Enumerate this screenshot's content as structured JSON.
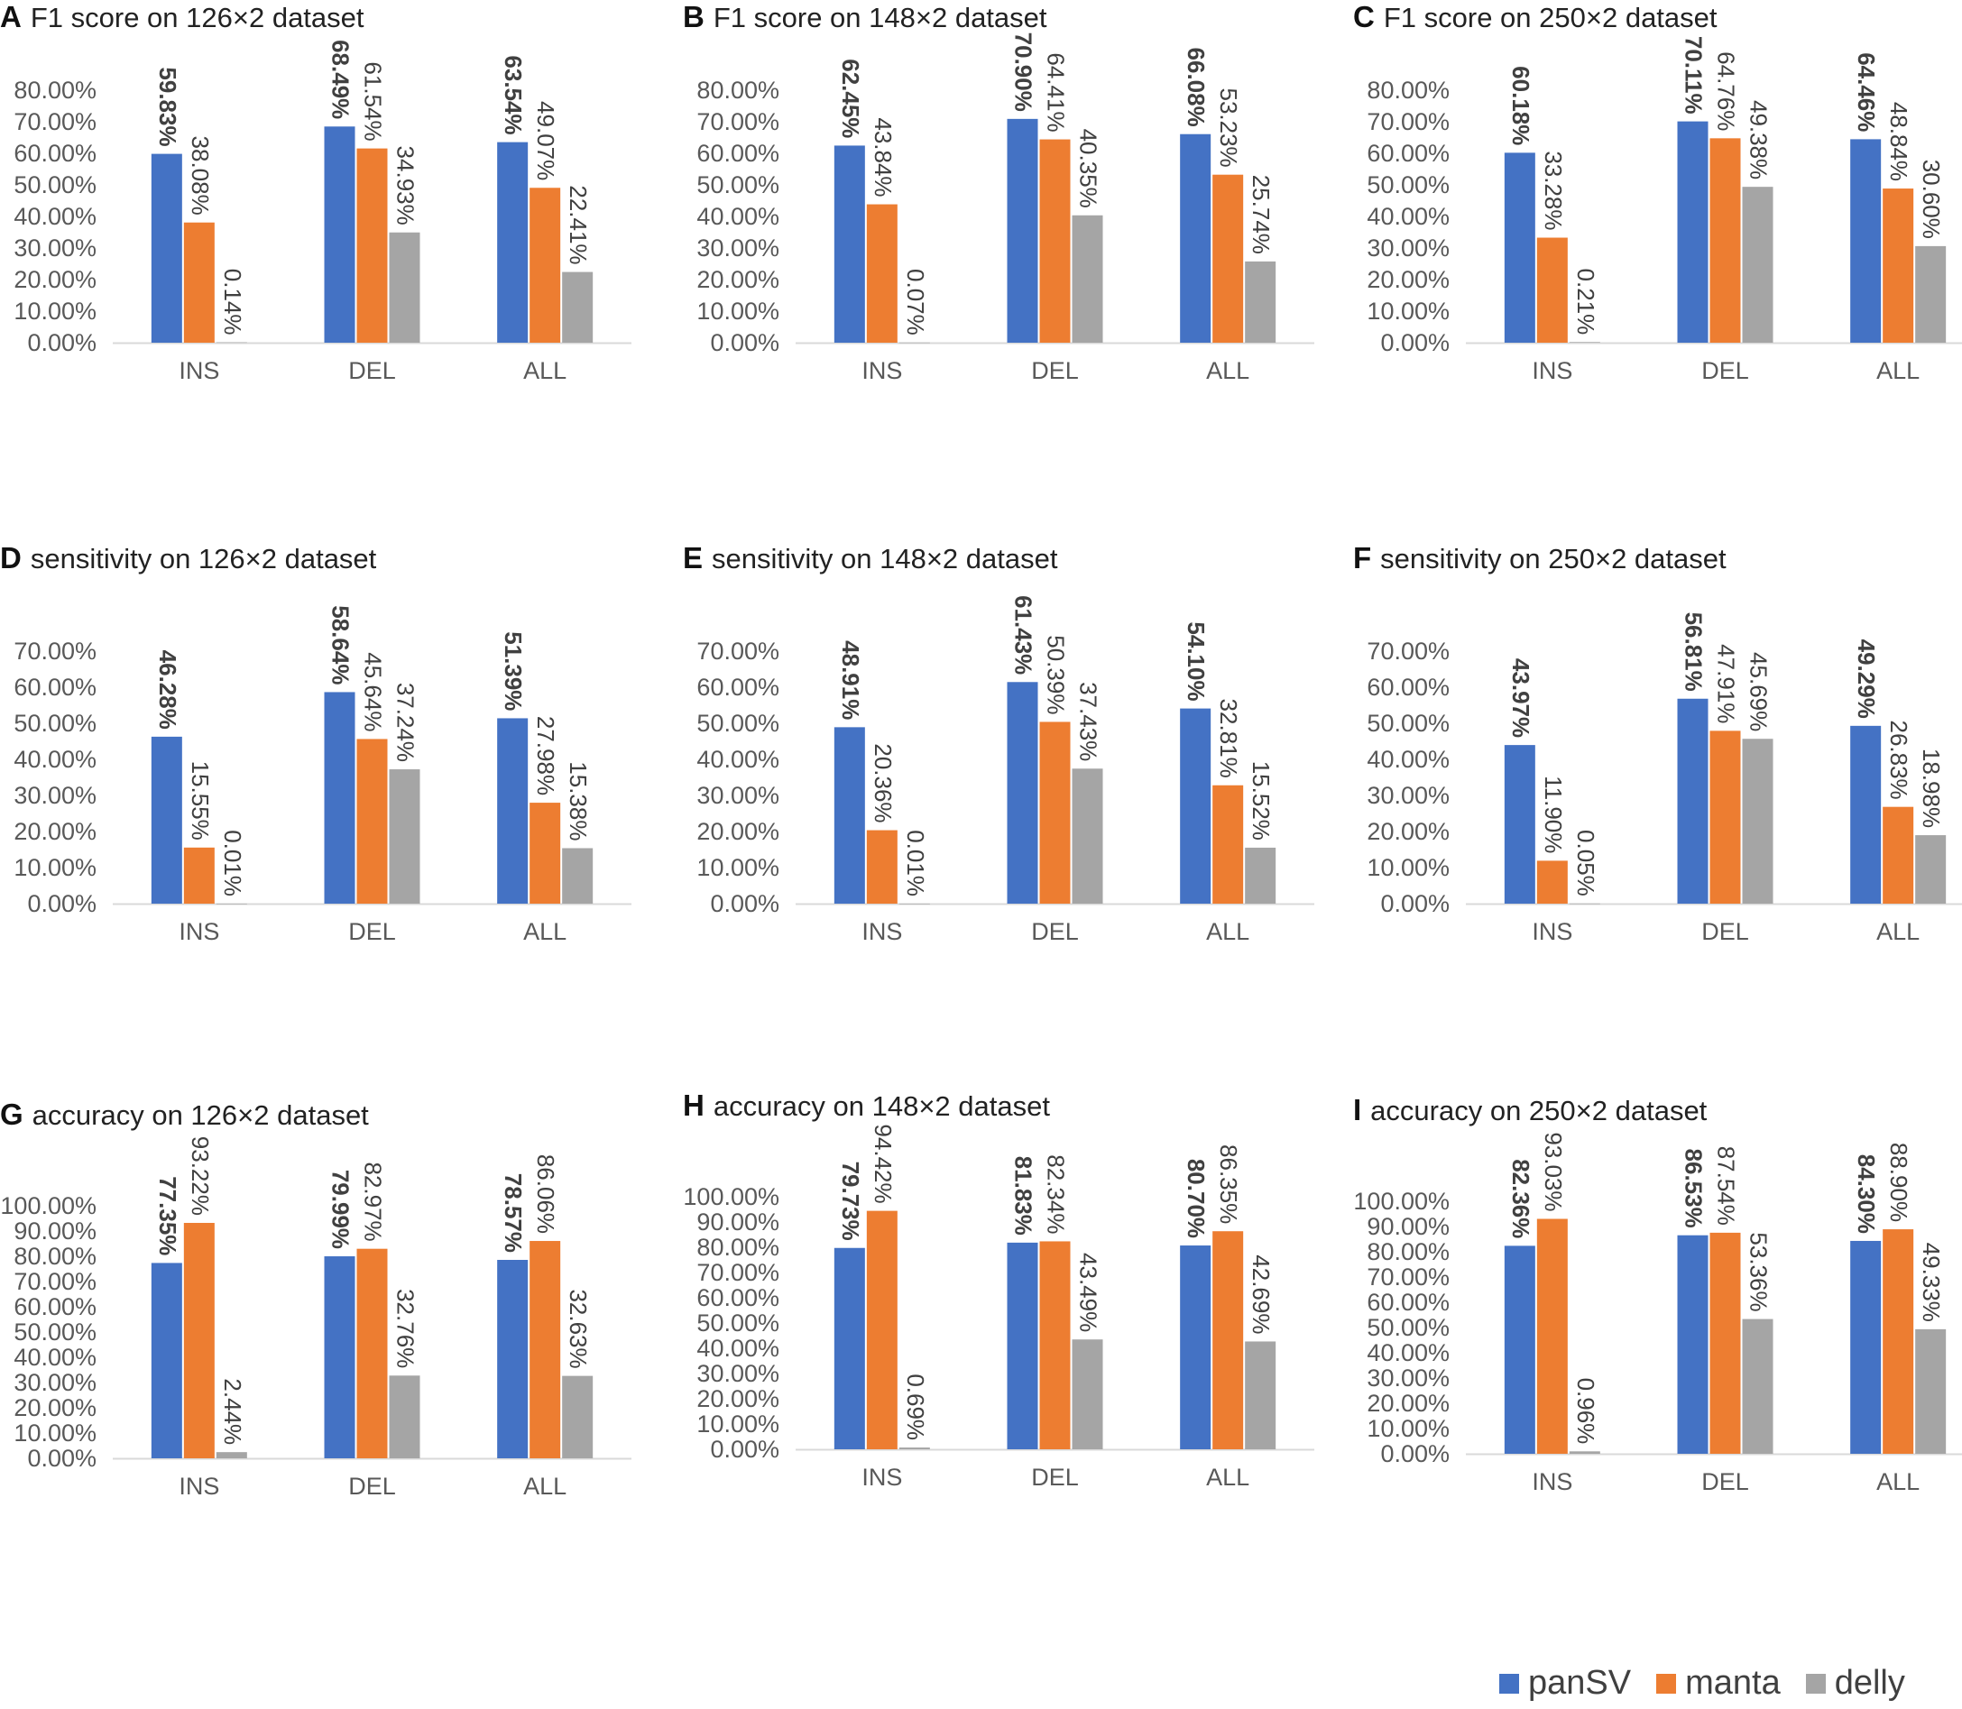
{
  "colors": {
    "panSV": "#4472C4",
    "manta": "#ED7D31",
    "delly": "#A5A5A5"
  },
  "legend": [
    {
      "name": "panSV",
      "color": "#4472C4"
    },
    {
      "name": "manta",
      "color": "#ED7D31"
    },
    {
      "name": "delly",
      "color": "#A5A5A5"
    }
  ],
  "chart_data": [
    {
      "type": "bar",
      "letter": "A",
      "title": "F1 score on 126×2 dataset",
      "categories": [
        "INS",
        "DEL",
        "ALL"
      ],
      "ylim": [
        0,
        80
      ],
      "ytick_step": 10,
      "yticks": [
        "0.00%",
        "10.00%",
        "20.00%",
        "30.00%",
        "40.00%",
        "50.00%",
        "60.00%",
        "70.00%",
        "80.00%"
      ],
      "series": [
        {
          "name": "panSV",
          "values": [
            59.83,
            68.49,
            63.54
          ],
          "labels": [
            "59.83%",
            "68.49%",
            "63.54%"
          ]
        },
        {
          "name": "manta",
          "values": [
            38.08,
            61.54,
            49.07
          ],
          "labels": [
            "38.08%",
            "61.54%",
            "49.07%"
          ]
        },
        {
          "name": "delly",
          "values": [
            0.14,
            34.93,
            22.41
          ],
          "labels": [
            "0.14%",
            "34.93%",
            "22.41%"
          ]
        }
      ]
    },
    {
      "type": "bar",
      "letter": "B",
      "title": "F1 score on 148×2 dataset",
      "categories": [
        "INS",
        "DEL",
        "ALL"
      ],
      "ylim": [
        0,
        80
      ],
      "ytick_step": 10,
      "yticks": [
        "0.00%",
        "10.00%",
        "20.00%",
        "30.00%",
        "40.00%",
        "50.00%",
        "60.00%",
        "70.00%",
        "80.00%"
      ],
      "series": [
        {
          "name": "panSV",
          "values": [
            62.45,
            70.9,
            66.08
          ],
          "labels": [
            "62.45%",
            "70.90%",
            "66.08%"
          ]
        },
        {
          "name": "manta",
          "values": [
            43.84,
            64.41,
            53.23
          ],
          "labels": [
            "43.84%",
            "64.41%",
            "53.23%"
          ]
        },
        {
          "name": "delly",
          "values": [
            0.07,
            40.35,
            25.74
          ],
          "labels": [
            "0.07%",
            "40.35%",
            "25.74%"
          ]
        }
      ]
    },
    {
      "type": "bar",
      "letter": "C",
      "title": "F1 score on 250×2 dataset",
      "categories": [
        "INS",
        "DEL",
        "ALL"
      ],
      "ylim": [
        0,
        80
      ],
      "ytick_step": 10,
      "yticks": [
        "0.00%",
        "10.00%",
        "20.00%",
        "30.00%",
        "40.00%",
        "50.00%",
        "60.00%",
        "70.00%",
        "80.00%"
      ],
      "series": [
        {
          "name": "panSV",
          "values": [
            60.18,
            70.11,
            64.46
          ],
          "labels": [
            "60.18%",
            "70.11%",
            "64.46%"
          ]
        },
        {
          "name": "manta",
          "values": [
            33.28,
            64.76,
            48.84
          ],
          "labels": [
            "33.28%",
            "64.76%",
            "48.84%"
          ]
        },
        {
          "name": "delly",
          "values": [
            0.21,
            49.38,
            30.6
          ],
          "labels": [
            "0.21%",
            "49.38%",
            "30.60%"
          ]
        }
      ]
    },
    {
      "type": "bar",
      "letter": "D",
      "title": "sensitivity on 126×2 dataset",
      "categories": [
        "INS",
        "DEL",
        "ALL"
      ],
      "ylim": [
        0,
        70
      ],
      "ytick_step": 10,
      "yticks": [
        "0.00%",
        "10.00%",
        "20.00%",
        "30.00%",
        "40.00%",
        "50.00%",
        "60.00%",
        "70.00%"
      ],
      "series": [
        {
          "name": "panSV",
          "values": [
            46.28,
            58.64,
            51.39
          ],
          "labels": [
            "46.28%",
            "58.64%",
            "51.39%"
          ]
        },
        {
          "name": "manta",
          "values": [
            15.55,
            45.64,
            27.98
          ],
          "labels": [
            "15.55%",
            "45.64%",
            "27.98%"
          ]
        },
        {
          "name": "delly",
          "values": [
            0.01,
            37.24,
            15.38
          ],
          "labels": [
            "0.01%",
            "37.24%",
            "15.38%"
          ]
        }
      ]
    },
    {
      "type": "bar",
      "letter": "E",
      "title": "sensitivity on 148×2 dataset",
      "categories": [
        "INS",
        "DEL",
        "ALL"
      ],
      "ylim": [
        0,
        70
      ],
      "ytick_step": 10,
      "yticks": [
        "0.00%",
        "10.00%",
        "20.00%",
        "30.00%",
        "40.00%",
        "50.00%",
        "60.00%",
        "70.00%"
      ],
      "series": [
        {
          "name": "panSV",
          "values": [
            48.91,
            61.43,
            54.1
          ],
          "labels": [
            "48.91%",
            "61.43%",
            "54.10%"
          ]
        },
        {
          "name": "manta",
          "values": [
            20.36,
            50.39,
            32.81
          ],
          "labels": [
            "20.36%",
            "50.39%",
            "32.81%"
          ]
        },
        {
          "name": "delly",
          "values": [
            0.01,
            37.43,
            15.52
          ],
          "labels": [
            "0.01%",
            "37.43%",
            "15.52%"
          ]
        }
      ]
    },
    {
      "type": "bar",
      "letter": "F",
      "title": "sensitivity on 250×2 dataset",
      "categories": [
        "INS",
        "DEL",
        "ALL"
      ],
      "ylim": [
        0,
        70
      ],
      "ytick_step": 10,
      "yticks": [
        "0.00%",
        "10.00%",
        "20.00%",
        "30.00%",
        "40.00%",
        "50.00%",
        "60.00%",
        "70.00%"
      ],
      "series": [
        {
          "name": "panSV",
          "values": [
            43.97,
            56.81,
            49.29
          ],
          "labels": [
            "43.97%",
            "56.81%",
            "49.29%"
          ]
        },
        {
          "name": "manta",
          "values": [
            11.9,
            47.91,
            26.83
          ],
          "labels": [
            "11.90%",
            "47.91%",
            "26.83%"
          ]
        },
        {
          "name": "delly",
          "values": [
            0.05,
            45.69,
            18.98
          ],
          "labels": [
            "0.05%",
            "45.69%",
            "18.98%"
          ]
        }
      ]
    },
    {
      "type": "bar",
      "letter": "G",
      "title": "accuracy on 126×2 dataset",
      "categories": [
        "INS",
        "DEL",
        "ALL"
      ],
      "ylim": [
        0,
        100
      ],
      "ytick_step": 10,
      "yticks": [
        "0.00%",
        "10.00%",
        "20.00%",
        "30.00%",
        "40.00%",
        "50.00%",
        "60.00%",
        "70.00%",
        "80.00%",
        "90.00%",
        "100.00%"
      ],
      "series": [
        {
          "name": "panSV",
          "values": [
            77.35,
            79.99,
            78.57
          ],
          "labels": [
            "77.35%",
            "79.99%",
            "78.57%"
          ]
        },
        {
          "name": "manta",
          "values": [
            93.22,
            82.97,
            86.06
          ],
          "labels": [
            "93.22%",
            "82.97%",
            "86.06%"
          ]
        },
        {
          "name": "delly",
          "values": [
            2.44,
            32.76,
            32.63
          ],
          "labels": [
            "2.44%",
            "32.76%",
            "32.63%"
          ]
        }
      ]
    },
    {
      "type": "bar",
      "letter": "H",
      "title": "accuracy on 148×2 dataset",
      "categories": [
        "INS",
        "DEL",
        "ALL"
      ],
      "ylim": [
        0,
        100
      ],
      "ytick_step": 10,
      "yticks": [
        "0.00%",
        "10.00%",
        "20.00%",
        "30.00%",
        "40.00%",
        "50.00%",
        "60.00%",
        "70.00%",
        "80.00%",
        "90.00%",
        "100.00%"
      ],
      "series": [
        {
          "name": "panSV",
          "values": [
            79.73,
            81.83,
            80.7
          ],
          "labels": [
            "79.73%",
            "81.83%",
            "80.70%"
          ]
        },
        {
          "name": "manta",
          "values": [
            94.42,
            82.34,
            86.35
          ],
          "labels": [
            "94.42%",
            "82.34%",
            "86.35%"
          ]
        },
        {
          "name": "delly",
          "values": [
            0.69,
            43.49,
            42.69
          ],
          "labels": [
            "0.69%",
            "43.49%",
            "42.69%"
          ]
        }
      ]
    },
    {
      "type": "bar",
      "letter": "I",
      "title": "accuracy on 250×2 dataset",
      "categories": [
        "INS",
        "DEL",
        "ALL"
      ],
      "ylim": [
        0,
        100
      ],
      "ytick_step": 10,
      "yticks": [
        "0.00%",
        "10.00%",
        "20.00%",
        "30.00%",
        "40.00%",
        "50.00%",
        "60.00%",
        "70.00%",
        "80.00%",
        "90.00%",
        "100.00%"
      ],
      "series": [
        {
          "name": "panSV",
          "values": [
            82.36,
            86.53,
            84.3
          ],
          "labels": [
            "82.36%",
            "86.53%",
            "84.30%"
          ]
        },
        {
          "name": "manta",
          "values": [
            93.03,
            87.54,
            88.9
          ],
          "labels": [
            "93.03%",
            "87.54%",
            "88.90%"
          ]
        },
        {
          "name": "delly",
          "values": [
            0.96,
            53.36,
            49.33
          ],
          "labels": [
            "0.96%",
            "53.36%",
            "49.33%"
          ]
        }
      ]
    }
  ]
}
